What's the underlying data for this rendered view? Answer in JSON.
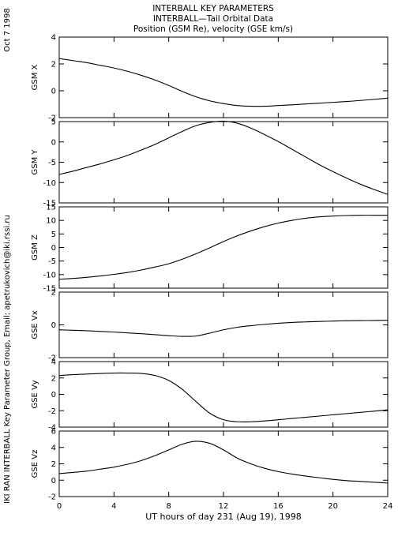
{
  "header": {
    "line1": "INTERBALL KEY PARAMETERS",
    "line2": "INTERBALL—Tail Orbital Data",
    "line3": "Position (GSM Re), velocity (GSE km/s)"
  },
  "side_labels": {
    "date": "Oct  7 1998",
    "credit": "IKI RAN INTERBALL Key Parameter Group, Email: apetrukovich@iki.rssi.ru"
  },
  "chart_data": {
    "type": "line",
    "xlabel": "UT hours of day 231 (Aug 19), 1998",
    "xlim": [
      0,
      24
    ],
    "xticks": [
      0,
      4,
      8,
      12,
      16,
      20,
      24
    ],
    "x": [
      0,
      1,
      2,
      3,
      4,
      5,
      6,
      7,
      8,
      9,
      10,
      11,
      12,
      13,
      14,
      15,
      16,
      17,
      18,
      19,
      20,
      21,
      22,
      23,
      24
    ],
    "panels": [
      {
        "ylabel": "GSM X",
        "ylim": [
          -2,
          4
        ],
        "yticks": [
          -2,
          0,
          2,
          4
        ],
        "values": [
          2.4,
          2.25,
          2.1,
          1.9,
          1.7,
          1.45,
          1.15,
          0.8,
          0.4,
          -0.05,
          -0.45,
          -0.75,
          -0.95,
          -1.1,
          -1.15,
          -1.15,
          -1.1,
          -1.05,
          -0.98,
          -0.92,
          -0.86,
          -0.8,
          -0.72,
          -0.64,
          -0.55
        ]
      },
      {
        "ylabel": "GSM Y",
        "ylim": [
          -15,
          5
        ],
        "yticks": [
          -15,
          -10,
          -5,
          0,
          5
        ],
        "values": [
          -8,
          -7.2,
          -6.3,
          -5.4,
          -4.4,
          -3.3,
          -2.0,
          -0.6,
          1.0,
          2.6,
          4.0,
          4.8,
          5.1,
          4.6,
          3.4,
          1.8,
          0.1,
          -1.8,
          -3.7,
          -5.6,
          -7.3,
          -8.9,
          -10.4,
          -11.7,
          -12.9
        ]
      },
      {
        "ylabel": "GSM Z",
        "ylim": [
          -15,
          15
        ],
        "yticks": [
          -15,
          -10,
          -5,
          0,
          5,
          10,
          15
        ],
        "values": [
          -11.7,
          -11.4,
          -11.0,
          -10.5,
          -9.9,
          -9.2,
          -8.3,
          -7.2,
          -6.0,
          -4.3,
          -2.3,
          -0.1,
          2.2,
          4.3,
          6.1,
          7.7,
          9.0,
          10.0,
          10.8,
          11.3,
          11.6,
          11.8,
          11.9,
          11.9,
          11.9
        ]
      },
      {
        "ylabel": "GSE Vx",
        "ylim": [
          -2,
          2
        ],
        "yticks": [
          -2,
          0,
          2
        ],
        "values": [
          -0.3,
          -0.33,
          -0.36,
          -0.4,
          -0.44,
          -0.49,
          -0.54,
          -0.6,
          -0.66,
          -0.7,
          -0.68,
          -0.5,
          -0.3,
          -0.15,
          -0.05,
          0.03,
          0.1,
          0.15,
          0.18,
          0.21,
          0.23,
          0.25,
          0.26,
          0.27,
          0.28
        ]
      },
      {
        "ylabel": "GSE Vy",
        "ylim": [
          -4,
          4
        ],
        "yticks": [
          -4,
          -2,
          0,
          2,
          4
        ],
        "values": [
          2.3,
          2.4,
          2.48,
          2.55,
          2.6,
          2.6,
          2.55,
          2.3,
          1.7,
          0.6,
          -0.9,
          -2.3,
          -3.1,
          -3.35,
          -3.35,
          -3.25,
          -3.1,
          -2.95,
          -2.8,
          -2.65,
          -2.5,
          -2.35,
          -2.2,
          -2.05,
          -1.9
        ]
      },
      {
        "ylabel": "GSE Vz",
        "ylim": [
          -2,
          6
        ],
        "yticks": [
          -2,
          0,
          2,
          4,
          6
        ],
        "values": [
          0.8,
          0.95,
          1.1,
          1.35,
          1.6,
          1.95,
          2.4,
          3.0,
          3.7,
          4.4,
          4.75,
          4.5,
          3.7,
          2.7,
          2.0,
          1.45,
          1.05,
          0.75,
          0.5,
          0.3,
          0.1,
          -0.05,
          -0.15,
          -0.25,
          -0.35
        ]
      }
    ]
  }
}
